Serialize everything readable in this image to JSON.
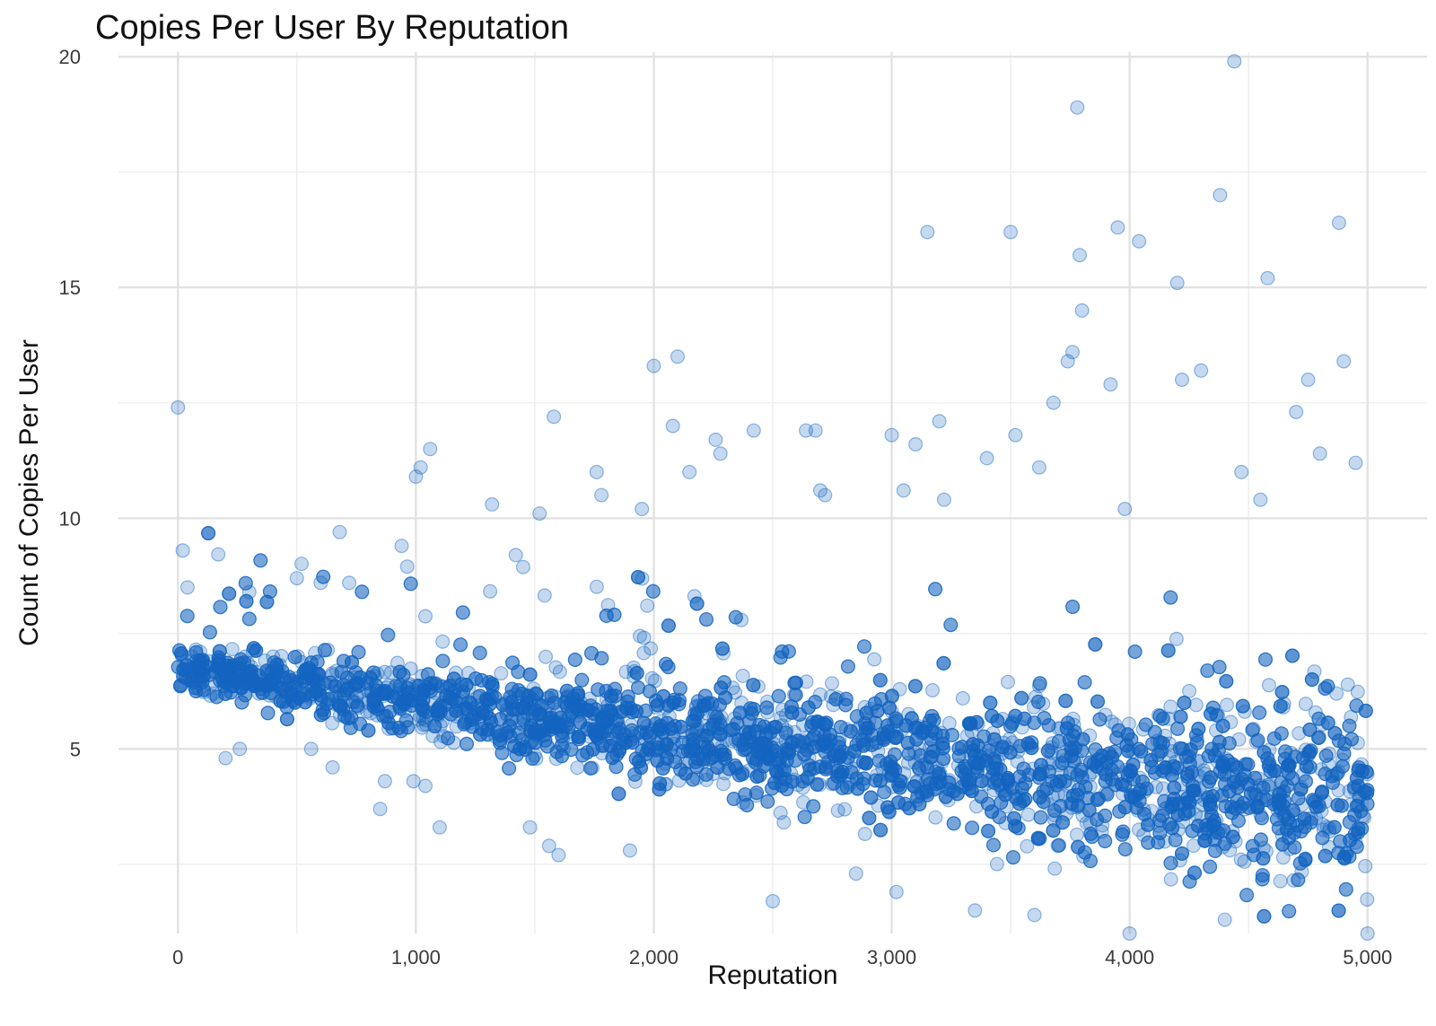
{
  "chart_data": {
    "type": "scatter",
    "title": "Copies Per User By Reputation",
    "xlabel": "Reputation",
    "ylabel": "Count of Copies Per User",
    "xlim": [
      -250,
      5250
    ],
    "ylim": [
      1,
      20.1
    ],
    "x_ticks": [
      0,
      1000,
      2000,
      3000,
      4000,
      5000
    ],
    "x_tick_labels": [
      "0",
      "1,000",
      "2,000",
      "3,000",
      "4,000",
      "5,000"
    ],
    "y_ticks": [
      5,
      10,
      15,
      20
    ],
    "y_tick_labels": [
      "5",
      "10",
      "15",
      "20"
    ],
    "grid": true,
    "point_color": "#1565c0",
    "point_opacity": 0.25,
    "approx_point_count": 5000,
    "trend": {
      "x": [
        0,
        1000,
        2000,
        3000,
        4000,
        5000
      ],
      "y_center": [
        6.8,
        6.0,
        5.3,
        4.8,
        4.3,
        3.9
      ]
    },
    "points": {
      "x": [
        0,
        20,
        40,
        60,
        80,
        100,
        150,
        200,
        260,
        300,
        340,
        360,
        400,
        500,
        560,
        600,
        650,
        680,
        720,
        800,
        850,
        870,
        940,
        990,
        1000,
        1020,
        1040,
        1060,
        1080,
        1100,
        1320,
        1420,
        1480,
        1520,
        1560,
        1580,
        1600,
        1760,
        1780,
        1900,
        1950,
        2000,
        2080,
        2100,
        2150,
        2260,
        2280,
        2420,
        2500,
        2640,
        2680,
        2700,
        2720,
        2850,
        3000,
        3020,
        3050,
        3100,
        3150,
        3200,
        3220,
        3350,
        3400,
        3500,
        3520,
        3600,
        3620,
        3680,
        3740,
        3760,
        3780,
        3790,
        3800,
        3920,
        3950,
        3980,
        4000,
        4040,
        4200,
        4220,
        4300,
        4380,
        4400,
        4440,
        4470,
        4550,
        4580,
        4700,
        4750,
        4800,
        4880,
        4900,
        4950,
        5000
      ],
      "y": [
        12.4,
        9.3,
        8.5,
        7.0,
        6.8,
        6.5,
        6.2,
        4.8,
        5.0,
        8.4,
        6.2,
        6.5,
        7.0,
        8.7,
        5.0,
        8.6,
        4.6,
        9.7,
        8.6,
        6.0,
        3.7,
        4.3,
        9.4,
        4.3,
        10.9,
        11.1,
        4.2,
        11.5,
        6.0,
        3.3,
        10.3,
        9.2,
        3.3,
        10.1,
        2.9,
        12.2,
        2.7,
        11.0,
        10.5,
        2.8,
        10.2,
        13.3,
        12.0,
        13.5,
        11.0,
        11.7,
        11.4,
        11.9,
        1.7,
        11.9,
        11.9,
        10.6,
        10.5,
        2.3,
        11.8,
        1.9,
        10.6,
        11.6,
        16.2,
        12.1,
        10.4,
        1.5,
        11.3,
        16.2,
        11.8,
        1.4,
        11.1,
        12.5,
        13.4,
        13.6,
        18.9,
        15.7,
        14.5,
        12.9,
        16.3,
        10.2,
        1.0,
        16.0,
        15.1,
        13.0,
        13.2,
        17.0,
        1.3,
        19.9,
        11.0,
        10.4,
        15.2,
        12.3,
        13.0,
        11.4,
        16.4,
        13.4,
        11.2,
        1.0
      ]
    }
  }
}
